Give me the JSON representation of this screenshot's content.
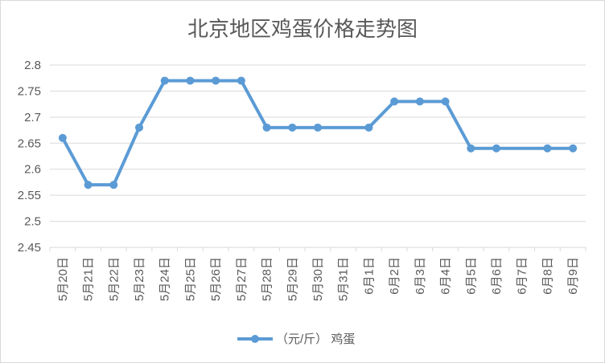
{
  "chart_data": {
    "type": "line",
    "title": "北京地区鸡蛋价格走势图",
    "xlabel": "",
    "ylabel": "",
    "ylim": [
      2.45,
      2.8
    ],
    "yticks": [
      "2.8",
      "2.75",
      "2.7",
      "2.65",
      "2.6",
      "2.55",
      "2.5",
      "2.45"
    ],
    "grid": true,
    "legend_position": "bottom",
    "categories": [
      "5月20日",
      "5月21日",
      "5月22日",
      "5月23日",
      "5月24日",
      "5月25日",
      "5月26日",
      "5月27日",
      "5月28日",
      "5月29日",
      "5月30日",
      "5月31日",
      "6月1日",
      "6月2日",
      "6月3日",
      "6月4日",
      "6月5日",
      "6月6日",
      "6月7日",
      "6月8日",
      "6月9日"
    ],
    "series": [
      {
        "name": "（元/斤） 鸡蛋",
        "color": "#5b9bd5",
        "values": [
          2.66,
          2.57,
          2.57,
          2.68,
          2.77,
          2.77,
          2.77,
          2.77,
          2.68,
          2.68,
          2.68,
          null,
          2.68,
          2.73,
          2.73,
          2.73,
          2.64,
          2.64,
          null,
          2.64,
          2.64
        ]
      }
    ]
  }
}
